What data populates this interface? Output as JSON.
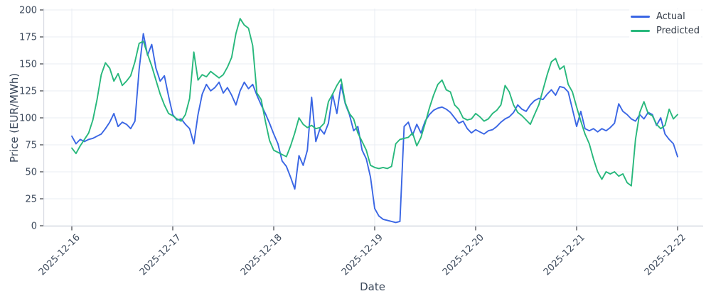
{
  "chart_data": {
    "type": "line",
    "title": "",
    "xlabel": "Date",
    "ylabel": "Price (EUR/MWh)",
    "x_tick_labels": [
      "2025-12-16",
      "2025-12-17",
      "2025-12-18",
      "2025-12-19",
      "2025-12-20",
      "2025-12-21",
      "2025-12-22"
    ],
    "x_tick_hours": [
      0,
      24,
      48,
      72,
      96,
      120,
      144
    ],
    "y_ticks": [
      0,
      25,
      50,
      75,
      100,
      125,
      150,
      175,
      200
    ],
    "ylim": [
      -2,
      201
    ],
    "x_resolution": "hourly",
    "x_start": "2025-12-16 00:00",
    "grid": true,
    "legend_position": "upper right",
    "colors": {
      "grid": "#e9ecf3",
      "spine": "#d8dbe3",
      "tick": "#3c3f46",
      "tick_label": "#3d4a5c"
    },
    "series": [
      {
        "name": "Actual",
        "color": "#3a66e4",
        "values": [
          83,
          76,
          80,
          78,
          80,
          81,
          83,
          85,
          90,
          96,
          104,
          92,
          96,
          94,
          90,
          97,
          145,
          178,
          158,
          168,
          146,
          134,
          139,
          120,
          103,
          98,
          99,
          94,
          90,
          76,
          103,
          122,
          131,
          125,
          128,
          133,
          123,
          128,
          121,
          112,
          125,
          133,
          127,
          131,
          121,
          112,
          104,
          95,
          85,
          76,
          60,
          55,
          45,
          34,
          65,
          56,
          70,
          119,
          78,
          90,
          85,
          95,
          122,
          104,
          131,
          113,
          103,
          88,
          92,
          70,
          62,
          45,
          16,
          9,
          6,
          5,
          4,
          3,
          4,
          92,
          96,
          84,
          94,
          86,
          97,
          103,
          107,
          109,
          110,
          108,
          105,
          100,
          95,
          97,
          90,
          86,
          89,
          87,
          85,
          88,
          89,
          92,
          96,
          99,
          101,
          105,
          112,
          108,
          106,
          112,
          116,
          118,
          117,
          122,
          126,
          121,
          129,
          128,
          124,
          108,
          92,
          106,
          90,
          88,
          90,
          87,
          90,
          88,
          91,
          95,
          113,
          106,
          103,
          99,
          97,
          103,
          99,
          105,
          103,
          93,
          100,
          85,
          80,
          76,
          64
        ]
      },
      {
        "name": "Predicted",
        "color": "#28b87c",
        "values": [
          72,
          67,
          74,
          80,
          86,
          98,
          117,
          140,
          151,
          146,
          134,
          141,
          130,
          134,
          139,
          152,
          169,
          171,
          159,
          148,
          135,
          122,
          112,
          104,
          102,
          99,
          97,
          103,
          118,
          161,
          135,
          140,
          138,
          143,
          140,
          137,
          140,
          147,
          156,
          178,
          192,
          186,
          183,
          167,
          123,
          117,
          97,
          79,
          70,
          68,
          66,
          64,
          74,
          86,
          100,
          94,
          91,
          93,
          90,
          91,
          95,
          115,
          122,
          130,
          136,
          114,
          104,
          99,
          86,
          78,
          70,
          56,
          54,
          53,
          54,
          53,
          55,
          76,
          80,
          81,
          82,
          86,
          74,
          82,
          95,
          109,
          121,
          131,
          135,
          126,
          124,
          112,
          108,
          100,
          98,
          99,
          104,
          101,
          97,
          99,
          104,
          107,
          112,
          130,
          124,
          112,
          105,
          102,
          98,
          94,
          103,
          112,
          126,
          140,
          152,
          155,
          145,
          148,
          131,
          124,
          110,
          97,
          85,
          76,
          62,
          50,
          43,
          50,
          48,
          50,
          46,
          48,
          40,
          37,
          80,
          105,
          115,
          104,
          102,
          94,
          90,
          93,
          108,
          99,
          103
        ]
      }
    ]
  }
}
